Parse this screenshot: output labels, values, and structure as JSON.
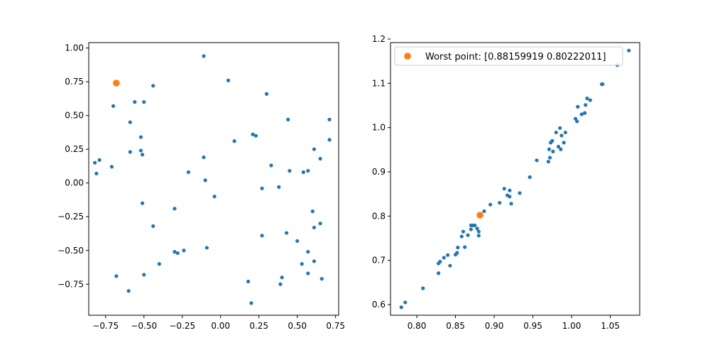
{
  "chart_data": [
    {
      "type": "scatter",
      "title": "",
      "xlabel": "",
      "ylabel": "",
      "xlim": [
        -0.86,
        0.77
      ],
      "ylim": [
        -0.98,
        1.04
      ],
      "xticks": [
        -0.75,
        -0.5,
        -0.25,
        0.0,
        0.25,
        0.5,
        0.75
      ],
      "xtick_labels": [
        "−0.75",
        "−0.50",
        "−0.25",
        "0.00",
        "0.25",
        "0.50",
        "0.75"
      ],
      "yticks": [
        -0.75,
        -0.5,
        -0.25,
        0.0,
        0.25,
        0.5,
        0.75,
        1.0
      ],
      "ytick_labels": [
        "−0.75",
        "−0.50",
        "−0.25",
        "0.00",
        "0.25",
        "0.50",
        "0.75",
        "1.00"
      ],
      "grid": false,
      "series": [
        {
          "color": "#1f77b4",
          "marker_size": "small",
          "points": [
            [
              -0.11,
              0.94
            ],
            [
              0.05,
              0.76
            ],
            [
              -0.44,
              0.72
            ],
            [
              -0.56,
              0.6
            ],
            [
              -0.5,
              0.6
            ],
            [
              0.3,
              0.66
            ],
            [
              -0.7,
              0.57
            ],
            [
              -0.59,
              0.45
            ],
            [
              0.44,
              0.47
            ],
            [
              0.71,
              0.47
            ],
            [
              -0.52,
              0.34
            ],
            [
              0.21,
              0.36
            ],
            [
              0.23,
              0.35
            ],
            [
              0.71,
              0.32
            ],
            [
              0.09,
              0.31
            ],
            [
              -0.59,
              0.23
            ],
            [
              -0.52,
              0.24
            ],
            [
              -0.51,
              0.21
            ],
            [
              -0.11,
              0.19
            ],
            [
              0.61,
              0.25
            ],
            [
              0.65,
              0.18
            ],
            [
              -0.79,
              0.17
            ],
            [
              -0.82,
              0.15
            ],
            [
              -0.71,
              0.12
            ],
            [
              0.33,
              0.13
            ],
            [
              -0.21,
              0.08
            ],
            [
              -0.81,
              0.07
            ],
            [
              0.45,
              0.09
            ],
            [
              0.54,
              0.08
            ],
            [
              0.57,
              0.09
            ],
            [
              -0.1,
              0.02
            ],
            [
              0.27,
              -0.04
            ],
            [
              0.38,
              -0.03
            ],
            [
              -0.04,
              -0.1
            ],
            [
              -0.51,
              -0.15
            ],
            [
              -0.3,
              -0.19
            ],
            [
              0.6,
              -0.21
            ],
            [
              -0.44,
              -0.32
            ],
            [
              0.65,
              -0.3
            ],
            [
              0.61,
              -0.33
            ],
            [
              0.43,
              -0.37
            ],
            [
              0.27,
              -0.39
            ],
            [
              0.5,
              -0.43
            ],
            [
              -0.09,
              -0.48
            ],
            [
              -0.24,
              -0.5
            ],
            [
              -0.3,
              -0.51
            ],
            [
              -0.28,
              -0.52
            ],
            [
              0.57,
              -0.51
            ],
            [
              0.61,
              -0.58
            ],
            [
              0.53,
              -0.6
            ],
            [
              -0.4,
              -0.6
            ],
            [
              0.57,
              -0.67
            ],
            [
              -0.5,
              -0.68
            ],
            [
              -0.68,
              -0.69
            ],
            [
              0.4,
              -0.7
            ],
            [
              0.66,
              -0.71
            ],
            [
              0.18,
              -0.73
            ],
            [
              0.39,
              -0.75
            ],
            [
              -0.6,
              -0.8
            ],
            [
              0.2,
              -0.89
            ]
          ]
        },
        {
          "color": "#ff7f0e",
          "marker_size": "large",
          "points": [
            [
              -0.68,
              0.74
            ]
          ]
        }
      ]
    },
    {
      "type": "scatter",
      "title": "",
      "xlabel": "",
      "ylabel": "",
      "xlim": [
        0.766,
        1.088
      ],
      "ylim": [
        0.576,
        1.192
      ],
      "xticks": [
        0.8,
        0.85,
        0.9,
        0.95,
        1.0,
        1.05
      ],
      "xtick_labels": [
        "0.80",
        "0.85",
        "0.90",
        "0.95",
        "1.00",
        "1.05"
      ],
      "yticks": [
        0.6,
        0.7,
        0.8,
        0.9,
        1.0,
        1.1,
        1.2
      ],
      "ytick_labels": [
        "0.6",
        "0.7",
        "0.8",
        "0.9",
        "1.0",
        "1.1",
        "1.2"
      ],
      "grid": false,
      "legend_position": "top-left",
      "series": [
        {
          "color": "#1f77b4",
          "marker_size": "small",
          "points": [
            [
              0.78,
              0.594
            ],
            [
              0.785,
              0.605
            ],
            [
              0.808,
              0.637
            ],
            [
              0.828,
              0.671
            ],
            [
              0.828,
              0.693
            ],
            [
              0.83,
              0.697
            ],
            [
              0.835,
              0.706
            ],
            [
              0.84,
              0.712
            ],
            [
              0.843,
              0.688
            ],
            [
              0.85,
              0.713
            ],
            [
              0.852,
              0.717
            ],
            [
              0.853,
              0.729
            ],
            [
              0.858,
              0.754
            ],
            [
              0.86,
              0.765
            ],
            [
              0.862,
              0.73
            ],
            [
              0.866,
              0.757
            ],
            [
              0.87,
              0.77
            ],
            [
              0.87,
              0.779
            ],
            [
              0.872,
              0.779
            ],
            [
              0.873,
              0.779
            ],
            [
              0.875,
              0.779
            ],
            [
              0.878,
              0.772
            ],
            [
              0.88,
              0.765
            ],
            [
              0.88,
              0.756
            ],
            [
              0.887,
              0.811
            ],
            [
              0.895,
              0.826
            ],
            [
              0.907,
              0.83
            ],
            [
              0.913,
              0.862
            ],
            [
              0.917,
              0.847
            ],
            [
              0.92,
              0.844
            ],
            [
              0.92,
              0.858
            ],
            [
              0.922,
              0.828
            ],
            [
              0.933,
              0.852
            ],
            [
              0.946,
              0.888
            ],
            [
              0.955,
              0.926
            ],
            [
              0.97,
              0.923
            ],
            [
              0.971,
              0.951
            ],
            [
              0.972,
              0.932
            ],
            [
              0.973,
              0.966
            ],
            [
              0.975,
              0.97
            ],
            [
              0.976,
              0.946
            ],
            [
              0.98,
              0.989
            ],
            [
              0.983,
              0.957
            ],
            [
              0.985,
              0.999
            ],
            [
              0.986,
              0.951
            ],
            [
              0.987,
              0.982
            ],
            [
              0.99,
              0.966
            ],
            [
              0.992,
              0.989
            ],
            [
              1.005,
              1.02
            ],
            [
              1.007,
              1.014
            ],
            [
              1.008,
              1.047
            ],
            [
              1.013,
              1.03
            ],
            [
              1.017,
              1.033
            ],
            [
              1.018,
              1.051
            ],
            [
              1.02,
              1.066
            ],
            [
              1.024,
              1.062
            ],
            [
              1.039,
              1.098
            ],
            [
              1.04,
              1.098
            ],
            [
              1.059,
              1.141
            ],
            [
              1.074,
              1.174
            ]
          ]
        },
        {
          "name": "Worst point: [0.88159919 0.80222011]",
          "color": "#ff7f0e",
          "marker_size": "large",
          "points": [
            [
              0.8816,
              0.8022
            ]
          ]
        }
      ]
    }
  ]
}
